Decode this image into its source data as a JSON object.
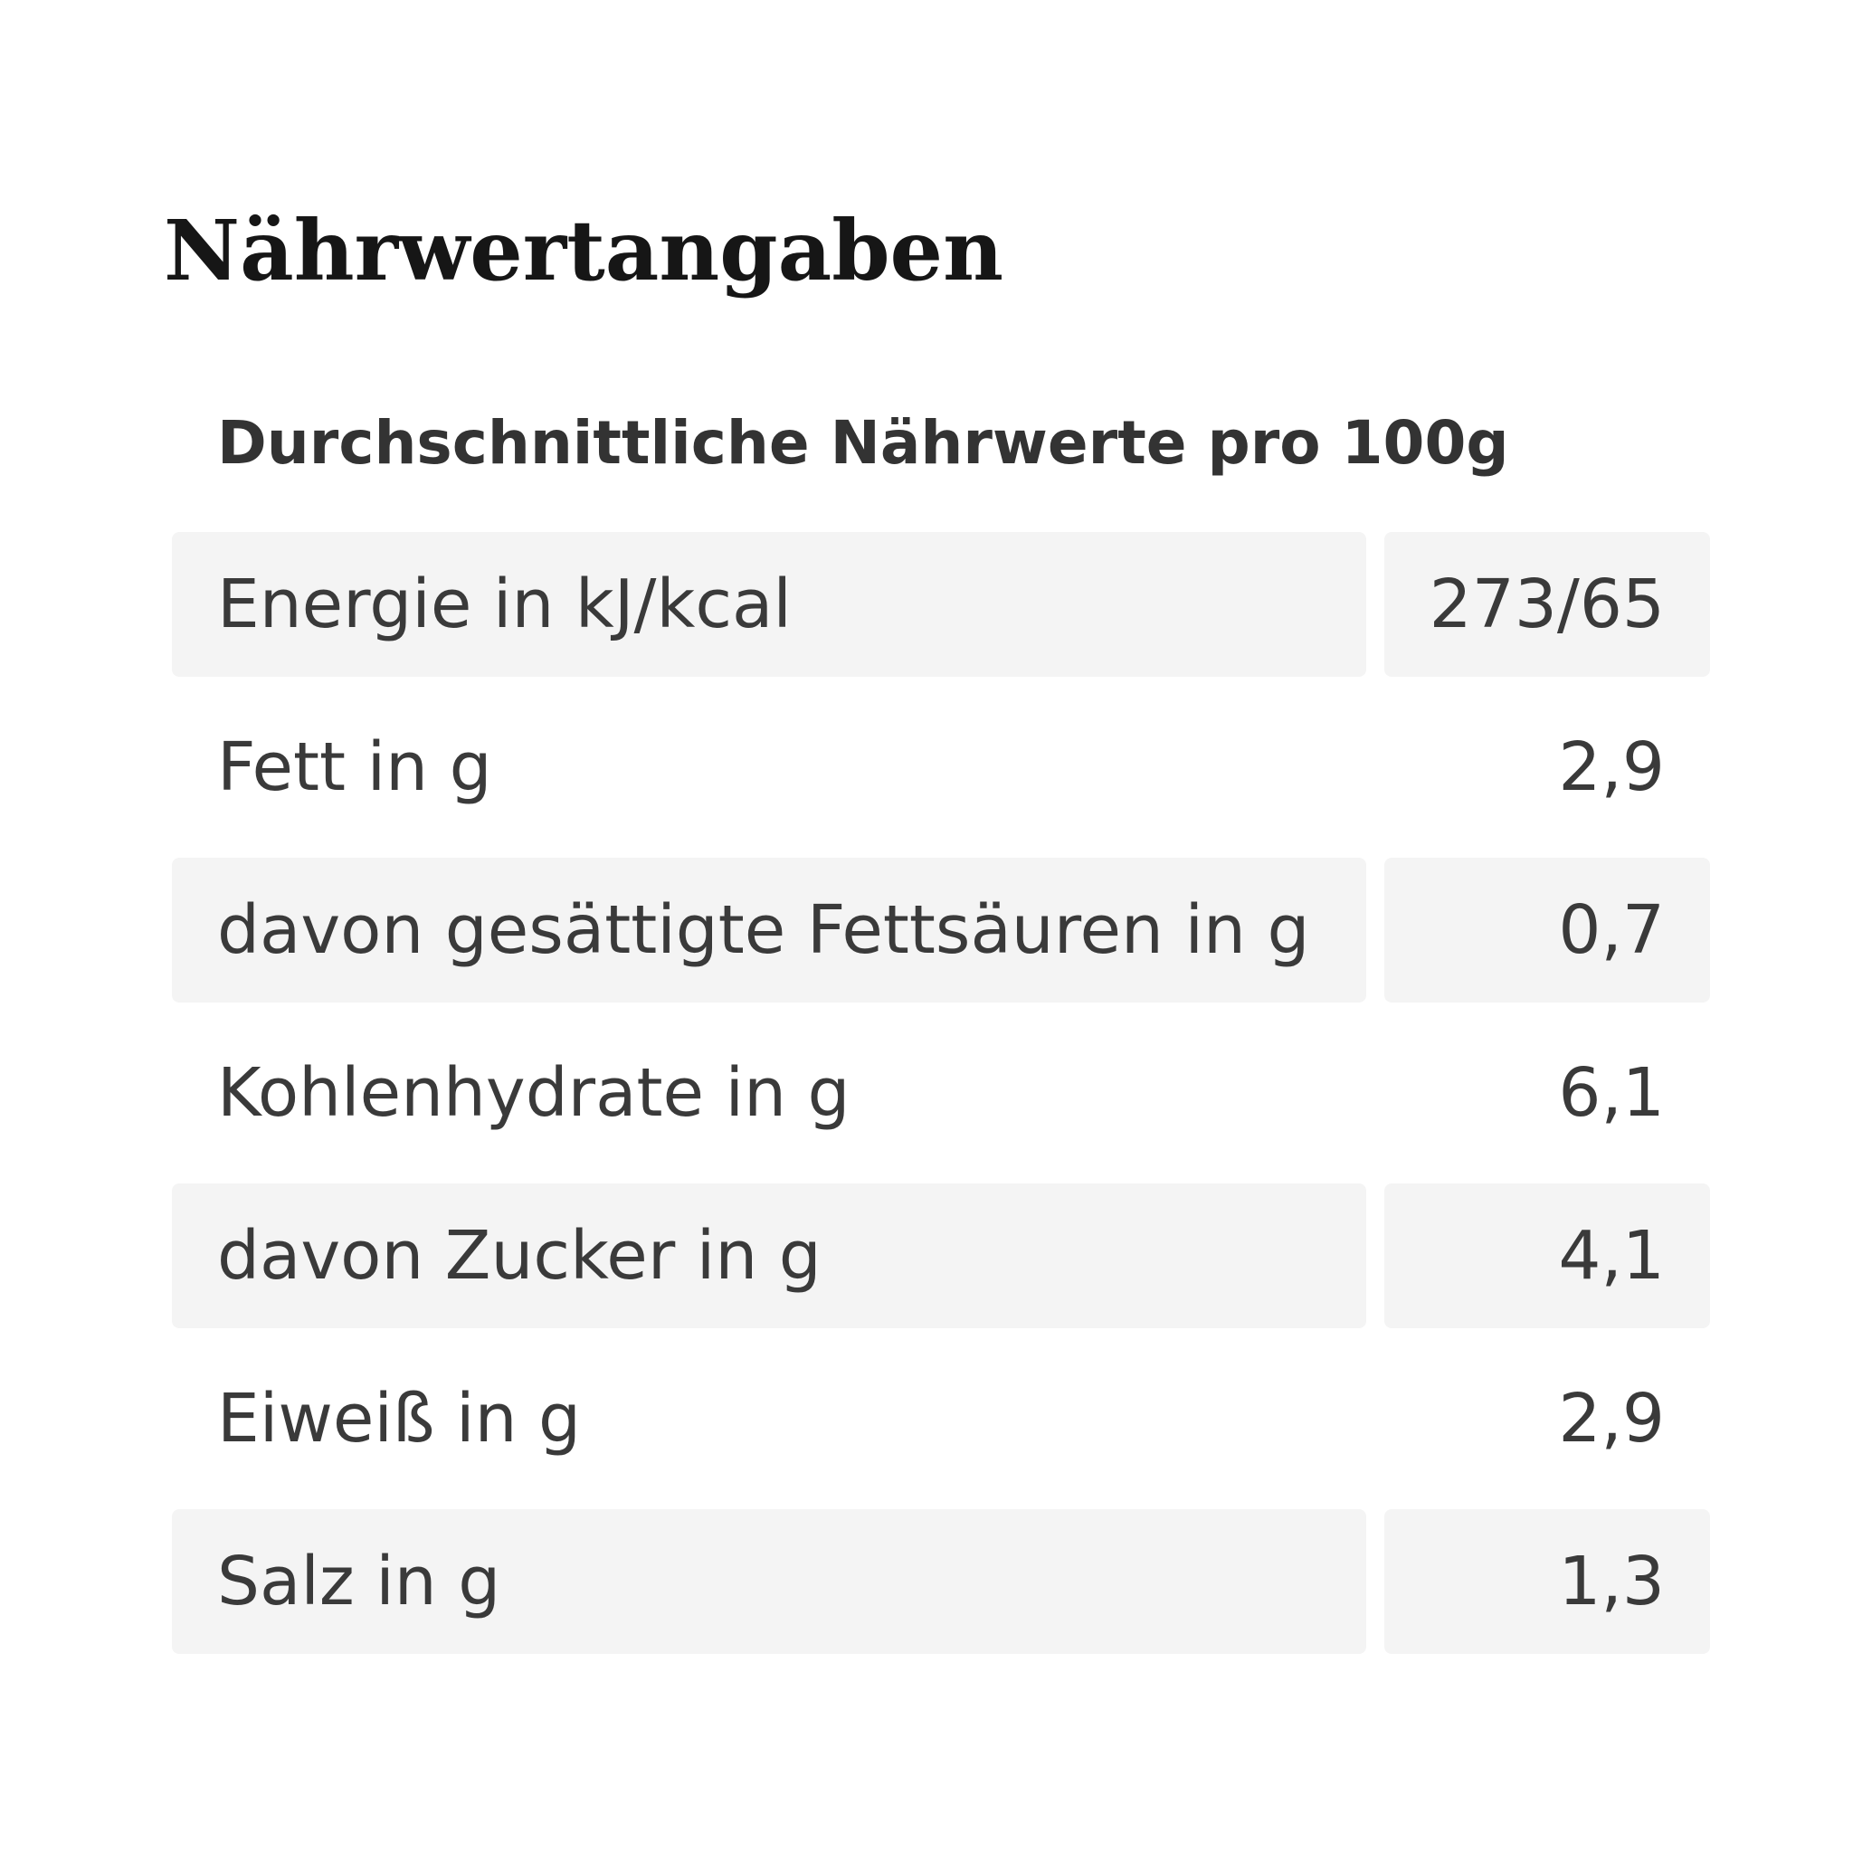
{
  "section": {
    "title": "Nährwertangaben",
    "caption": "Durchschnittliche Nährwerte pro 100g"
  },
  "nutrition": {
    "rows": [
      {
        "label": "Energie in kJ/kcal",
        "value": "273/65"
      },
      {
        "label": "Fett in g",
        "value": "2,9"
      },
      {
        "label": "davon gesättigte Fettsäuren in g",
        "value": "0,7"
      },
      {
        "label": "Kohlenhydrate in g",
        "value": "6,1"
      },
      {
        "label": "davon Zucker in g",
        "value": "4,1"
      },
      {
        "label": "Eiweiß in g",
        "value": "2,9"
      },
      {
        "label": "Salz in g",
        "value": "1,3"
      }
    ]
  },
  "colors": {
    "title": "#161616",
    "text": "#3a3a3a",
    "row_shade": "#f4f4f4",
    "background": "#ffffff"
  }
}
